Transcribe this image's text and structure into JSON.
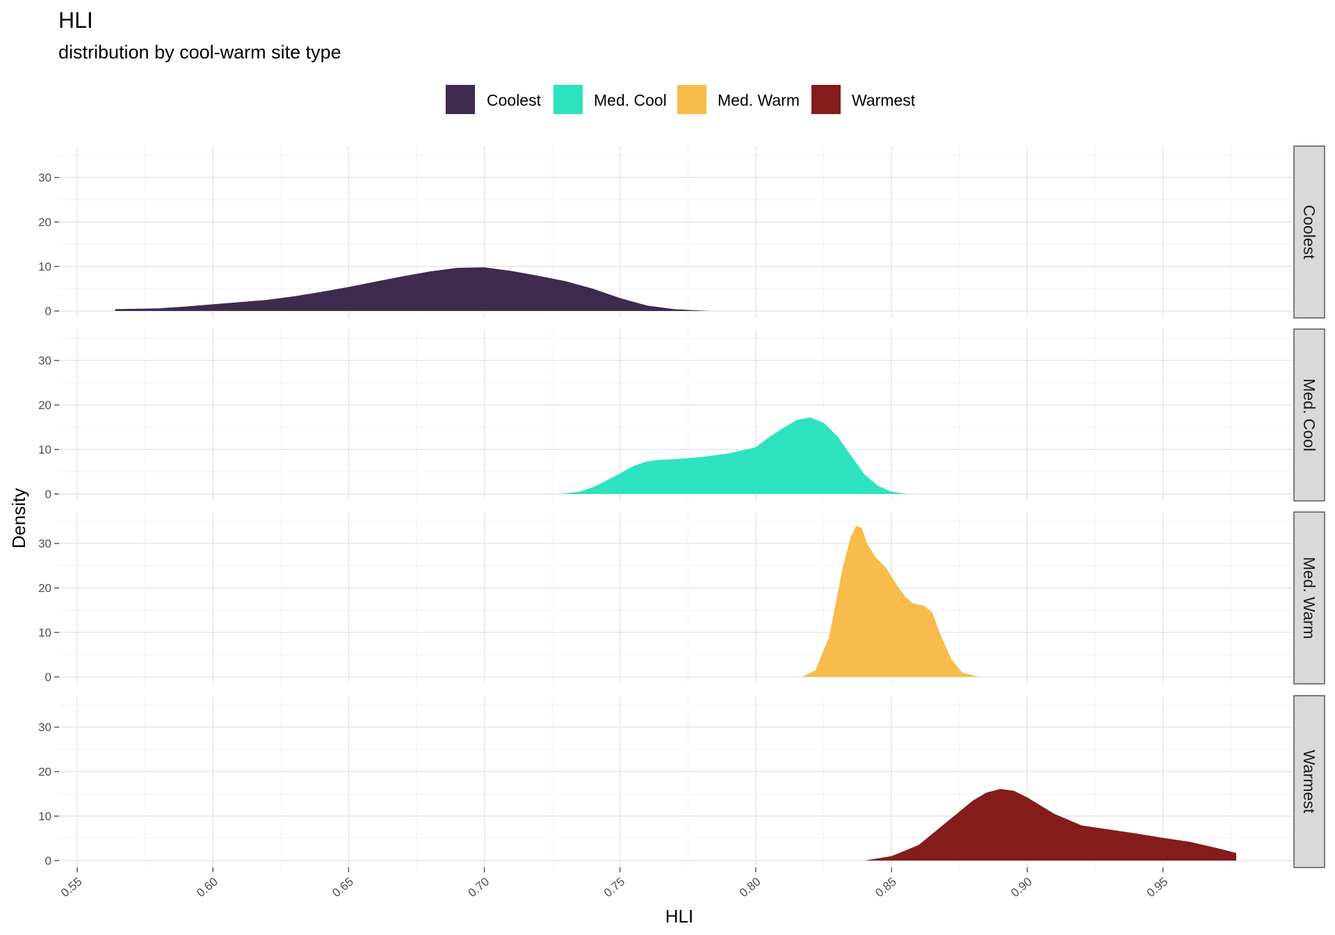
{
  "chart_data": {
    "type": "area",
    "title": "HLI",
    "subtitle": "distribution by cool-warm site type",
    "xlabel": "HLI",
    "ylabel": "Density",
    "xlim": [
      0.54,
      0.977
    ],
    "ylim": [
      0,
      36
    ],
    "x_ticks": [
      "0.55",
      "0.60",
      "0.65",
      "0.70",
      "0.75",
      "0.80",
      "0.85",
      "0.90",
      "0.95"
    ],
    "y_ticks": [
      "0",
      "10",
      "20",
      "30"
    ],
    "legend": {
      "position": "top"
    },
    "grid": true,
    "facets": [
      "Coolest",
      "Med. Cool",
      "Med. Warm",
      "Warmest"
    ],
    "series": [
      {
        "name": "Coolest",
        "color": "#3f2a4f",
        "x": [
          0.564,
          0.58,
          0.59,
          0.6,
          0.61,
          0.62,
          0.63,
          0.64,
          0.65,
          0.66,
          0.67,
          0.68,
          0.69,
          0.7,
          0.71,
          0.72,
          0.73,
          0.74,
          0.75,
          0.76,
          0.77,
          0.783
        ],
        "y": [
          0.4,
          0.6,
          1.0,
          1.5,
          2.0,
          2.5,
          3.3,
          4.3,
          5.4,
          6.6,
          7.8,
          8.9,
          9.7,
          9.8,
          9.0,
          7.9,
          6.7,
          5.0,
          2.9,
          1.2,
          0.4,
          0.0
        ]
      },
      {
        "name": "Med. Cool",
        "color": "#2de3bf",
        "x": [
          0.728,
          0.735,
          0.74,
          0.745,
          0.75,
          0.755,
          0.76,
          0.765,
          0.77,
          0.78,
          0.79,
          0.8,
          0.805,
          0.81,
          0.815,
          0.82,
          0.825,
          0.83,
          0.835,
          0.84,
          0.845,
          0.85,
          0.856
        ],
        "y": [
          0.0,
          0.5,
          1.5,
          3.0,
          4.6,
          6.3,
          7.3,
          7.7,
          7.8,
          8.3,
          9.1,
          10.5,
          12.8,
          14.8,
          16.6,
          17.2,
          16.0,
          13.0,
          8.7,
          4.4,
          1.8,
          0.5,
          0.0
        ]
      },
      {
        "name": "Med. Warm",
        "color": "#f7bc4b",
        "x": [
          0.817,
          0.822,
          0.827,
          0.832,
          0.835,
          0.837,
          0.839,
          0.841,
          0.844,
          0.848,
          0.851,
          0.855,
          0.858,
          0.862,
          0.865,
          0.868,
          0.872,
          0.876,
          0.882
        ],
        "y": [
          0.0,
          1.5,
          9.0,
          24.5,
          31.5,
          34.0,
          33.5,
          30.0,
          27.0,
          24.5,
          21.5,
          18.0,
          16.5,
          16.0,
          14.5,
          9.5,
          4.0,
          1.0,
          0.0
        ]
      },
      {
        "name": "Warmest",
        "color": "#841c1c",
        "x": [
          0.84,
          0.85,
          0.86,
          0.87,
          0.88,
          0.885,
          0.89,
          0.895,
          0.9,
          0.91,
          0.92,
          0.93,
          0.94,
          0.95,
          0.96,
          0.97,
          0.977
        ],
        "y": [
          0.0,
          1.0,
          3.5,
          8.5,
          13.5,
          15.3,
          16.1,
          15.7,
          14.2,
          10.5,
          7.9,
          7.0,
          6.1,
          5.1,
          4.2,
          2.8,
          1.7
        ]
      }
    ]
  }
}
